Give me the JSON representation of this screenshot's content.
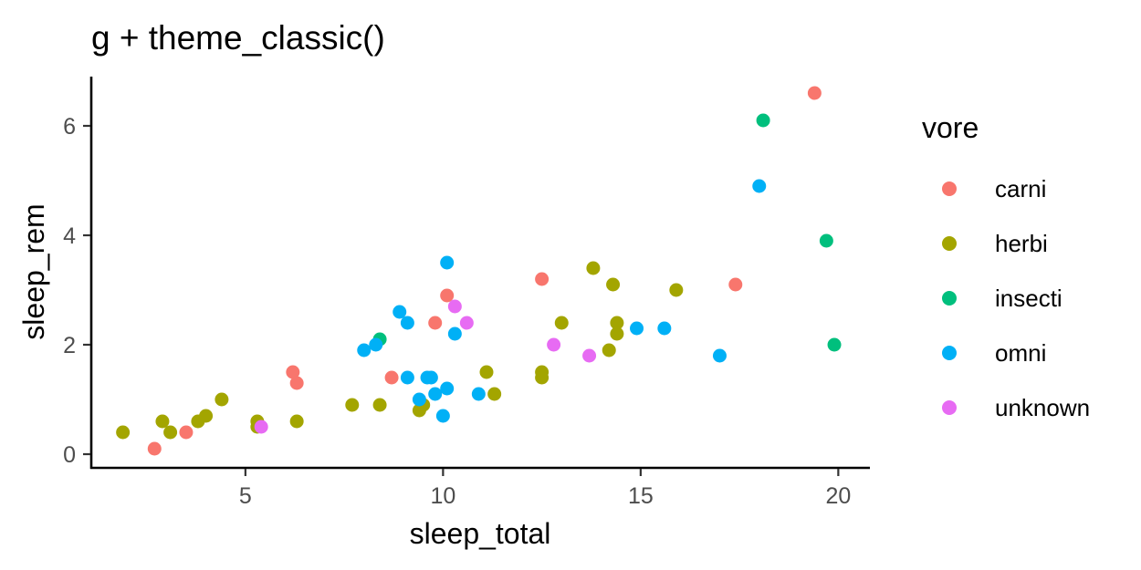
{
  "chart_data": {
    "type": "scatter",
    "title": "g + theme_classic()",
    "xlabel": "sleep_total",
    "ylabel": "sleep_rem",
    "xlim": [
      1.1,
      20.8
    ],
    "ylim": [
      -0.25,
      6.9
    ],
    "xticks": [
      5,
      10,
      15,
      20
    ],
    "yticks": [
      0,
      2,
      4,
      6
    ],
    "grid": false,
    "legend": {
      "title": "vore",
      "position": "right"
    },
    "series": [
      {
        "name": "carni",
        "color": "#F8766D",
        "points": [
          [
            19.4,
            6.6
          ],
          [
            17.4,
            3.1
          ],
          [
            12.5,
            3.2
          ],
          [
            10.1,
            2.9
          ],
          [
            9.8,
            2.4
          ],
          [
            8.7,
            1.4
          ],
          [
            6.3,
            1.3
          ],
          [
            6.2,
            1.5
          ],
          [
            3.5,
            0.4
          ],
          [
            2.7,
            0.1
          ]
        ]
      },
      {
        "name": "herbi",
        "color": "#A3A500",
        "points": [
          [
            1.9,
            0.4
          ],
          [
            2.9,
            0.6
          ],
          [
            3.1,
            0.4
          ],
          [
            3.8,
            0.6
          ],
          [
            4.0,
            0.7
          ],
          [
            4.4,
            1.0
          ],
          [
            5.3,
            0.6
          ],
          [
            5.3,
            0.5
          ],
          [
            6.3,
            0.6
          ],
          [
            7.7,
            0.9
          ],
          [
            8.4,
            0.9
          ],
          [
            9.4,
            0.8
          ],
          [
            9.5,
            0.9
          ],
          [
            11.1,
            1.5
          ],
          [
            11.3,
            1.1
          ],
          [
            12.5,
            1.5
          ],
          [
            12.5,
            1.4
          ],
          [
            13.0,
            2.4
          ],
          [
            13.8,
            3.4
          ],
          [
            14.2,
            1.9
          ],
          [
            14.3,
            3.1
          ],
          [
            14.4,
            2.4
          ],
          [
            14.4,
            2.2
          ],
          [
            15.9,
            3.0
          ]
        ]
      },
      {
        "name": "insecti",
        "color": "#00BF7D",
        "points": [
          [
            8.4,
            2.1
          ],
          [
            18.1,
            6.1
          ],
          [
            19.7,
            3.9
          ],
          [
            19.9,
            2.0
          ]
        ]
      },
      {
        "name": "omni",
        "color": "#00B0F6",
        "points": [
          [
            8.0,
            1.9
          ],
          [
            8.3,
            2.0
          ],
          [
            8.9,
            2.6
          ],
          [
            9.1,
            2.4
          ],
          [
            9.1,
            1.4
          ],
          [
            9.4,
            1.0
          ],
          [
            9.6,
            1.4
          ],
          [
            9.7,
            1.4
          ],
          [
            9.8,
            1.1
          ],
          [
            10.0,
            0.7
          ],
          [
            10.1,
            1.2
          ],
          [
            10.1,
            3.5
          ],
          [
            10.3,
            2.2
          ],
          [
            10.9,
            1.1
          ],
          [
            14.9,
            2.3
          ],
          [
            15.6,
            2.3
          ],
          [
            17.0,
            1.8
          ],
          [
            18.0,
            4.9
          ]
        ]
      },
      {
        "name": "unknown",
        "color": "#E76BF3",
        "points": [
          [
            5.4,
            0.5
          ],
          [
            10.3,
            2.7
          ],
          [
            10.6,
            2.4
          ],
          [
            12.8,
            2.0
          ],
          [
            13.7,
            1.8
          ]
        ]
      }
    ]
  }
}
